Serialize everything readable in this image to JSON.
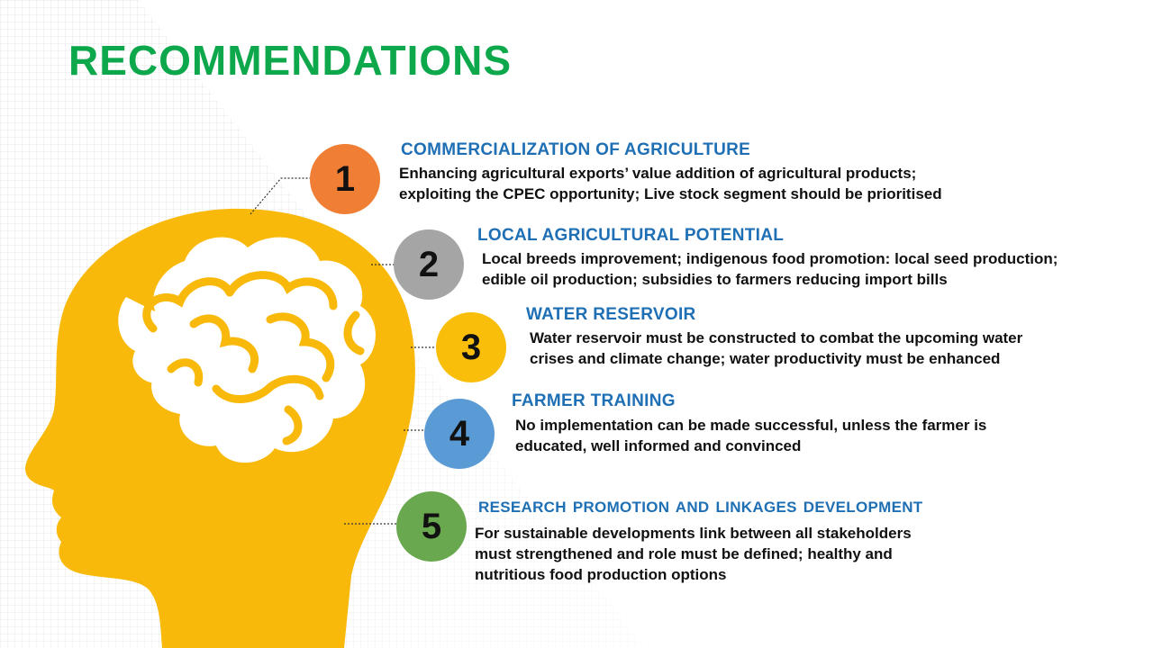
{
  "title": "RECOMMENDATIONS",
  "colors": {
    "title": "#0ea84c",
    "heading": "#1f6fb5",
    "head": "#f9b90a",
    "c1": "#f07f35",
    "c2": "#a5a5a5",
    "c3": "#f9be0a",
    "c4": "#5b9bd5",
    "c5": "#6aa84f"
  },
  "items": [
    {
      "number": "1",
      "heading": "COMMERCIALIZATION OF AGRICULTURE",
      "lines": [
        "Enhancing agricultural exports’ value addition of agricultural products;",
        "exploiting the CPEC opportunity; Live stock segment should be prioritised"
      ]
    },
    {
      "number": "2",
      "heading": "LOCAL AGRICULTURAL POTENTIAL",
      "lines": [
        "Local breeds improvement; indigenous food promotion: local seed production;",
        "edible oil production; subsidies to farmers reducing import bills"
      ]
    },
    {
      "number": "3",
      "heading": "WATER RESERVOIR",
      "lines": [
        "Water reservoir must be constructed to combat the upcoming water",
        "crises and climate change; water productivity must be enhanced"
      ]
    },
    {
      "number": "4",
      "heading": "FARMER TRAINING",
      "lines": [
        "No implementation can be made successful, unless the farmer is",
        "educated, well informed and convinced"
      ]
    },
    {
      "number": "5",
      "heading": "RESEARCH  PROMOTION  AND  LINKAGES  DEVELOPMENT",
      "lines": [
        "For sustainable developments link between all stakeholders",
        "must strengthened and role must be defined; healthy and",
        "nutritious food production options"
      ]
    }
  ]
}
